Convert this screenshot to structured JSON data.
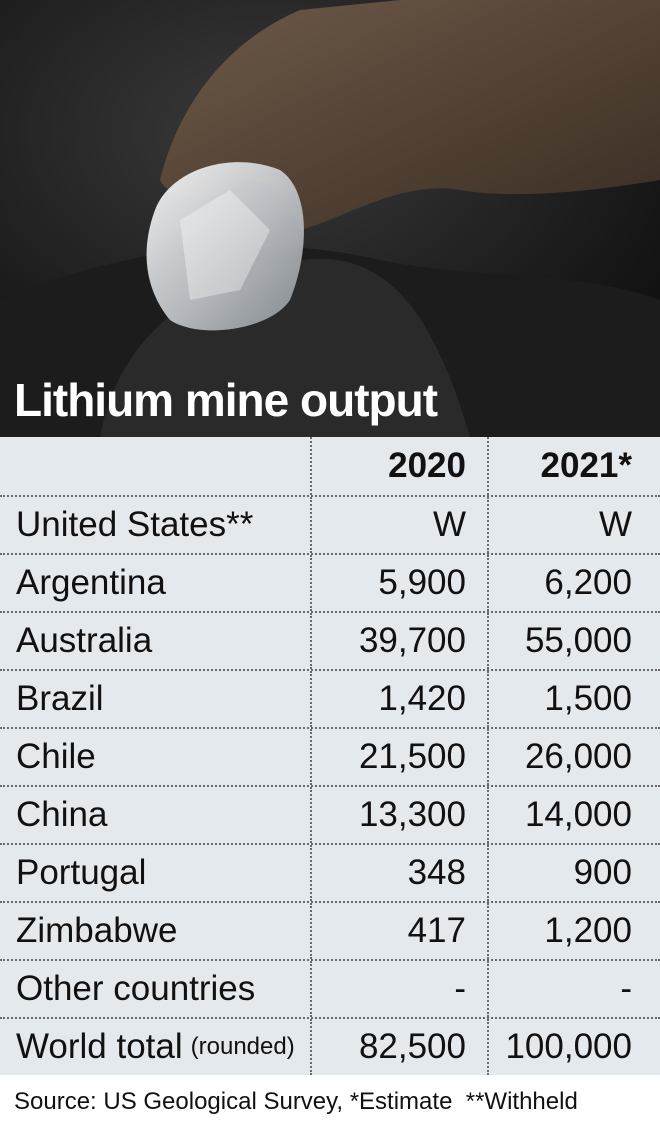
{
  "title": "Lithium mine output",
  "table": {
    "columns": [
      "2020",
      "2021*"
    ],
    "rows": [
      {
        "label": "United States**",
        "values": [
          "W",
          "W"
        ]
      },
      {
        "label": "Argentina",
        "values": [
          "5,900",
          "6,200"
        ]
      },
      {
        "label": "Australia",
        "values": [
          "39,700",
          "55,000"
        ]
      },
      {
        "label": "Brazil",
        "values": [
          "1,420",
          "1,500"
        ]
      },
      {
        "label": "Chile",
        "values": [
          "21,500",
          "26,000"
        ]
      },
      {
        "label": "China",
        "values": [
          "13,300",
          "14,000"
        ]
      },
      {
        "label": "Portugal",
        "values": [
          "348",
          "900"
        ]
      },
      {
        "label": "Zimbabwe",
        "values": [
          "417",
          "1,200"
        ]
      },
      {
        "label": "Other countries",
        "values": [
          "-",
          "-"
        ]
      },
      {
        "label": "World total",
        "note": "(rounded)",
        "values": [
          "82,500",
          "100,000"
        ]
      }
    ]
  },
  "footer": "Source: US Geological Survey, *Estimate  **Withheld"
}
